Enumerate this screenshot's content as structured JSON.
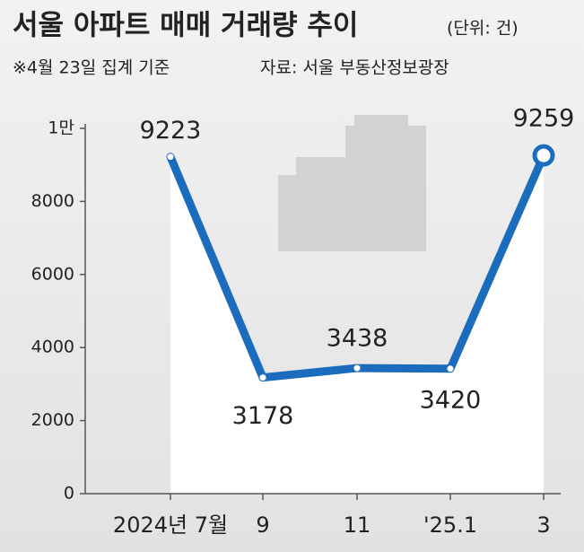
{
  "chart_data": {
    "type": "line",
    "title": "서울 아파트 매매 거래량 추이",
    "subtitle": "(단위: 건)",
    "note": "※4월 23일 집계 기준",
    "source": "자료: 서울 부동산정보광장",
    "categories": [
      "2024년 7월",
      "9",
      "11",
      "'25.1",
      "3"
    ],
    "values": [
      9223,
      3178,
      3438,
      3420,
      9259
    ],
    "color": "#1c6cbd",
    "ylim": [
      0,
      10000
    ],
    "yticks": [
      0,
      2000,
      4000,
      6000,
      8000,
      {
        "value": 10000,
        "label": "1만"
      }
    ]
  }
}
